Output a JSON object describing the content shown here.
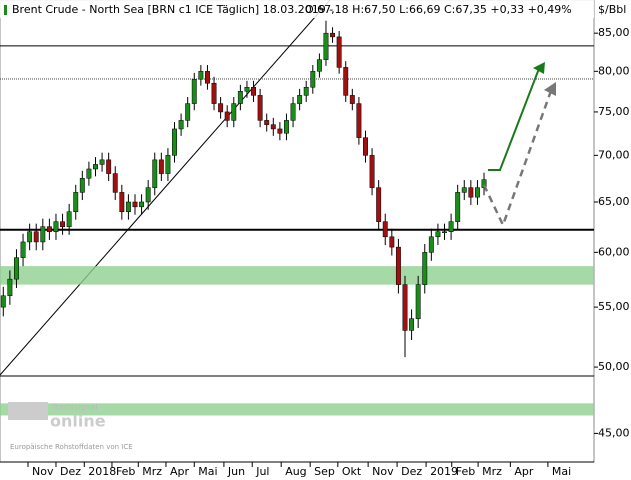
{
  "chart_data": {
    "type": "candlestick",
    "title": "Brent Crude - North Sea [BRN c1 ICE  Täglich] 18.03.2019 -",
    "header_values": [
      "O:67,18",
      "H:67,50",
      "L:66,69",
      "C:67,35",
      "+0,33",
      "+0,49%"
    ],
    "unit": "$/Bbl",
    "watermark": "Tradesignal",
    "watermark2": "online",
    "source": "Europäische Rohstoffdaten von ICE",
    "up_color": "#1a8c1a",
    "down_color": "#a01010",
    "log_scale": true,
    "open": [
      55,
      56,
      57.5,
      59.5,
      61,
      62,
      61,
      62.5,
      62,
      63,
      62.5,
      64,
      66,
      67.5,
      68.5,
      69,
      69.5,
      68,
      66,
      64,
      65,
      64.5,
      65,
      66.5,
      69.5,
      68,
      70,
      73,
      74,
      76,
      79,
      80,
      78.5,
      76,
      75,
      74,
      76,
      77.5,
      78,
      77,
      74,
      73.5,
      73,
      72.5,
      74,
      76,
      77,
      78,
      80,
      81.5,
      85,
      84.5,
      80.5,
      77,
      76,
      72,
      70,
      66.5,
      63,
      61.5,
      60.5,
      57,
      53,
      54,
      57,
      60,
      61.5,
      62,
      62,
      63,
      66,
      66.5,
      65.5,
      66.5
    ],
    "high": [
      56.8,
      58.3,
      60.3,
      61.8,
      62.8,
      62.8,
      63.3,
      63.3,
      63.8,
      63.8,
      64.8,
      66.8,
      68.3,
      69.3,
      69.8,
      70.3,
      70.3,
      68.8,
      66.8,
      65.8,
      65.8,
      65.8,
      67.3,
      70.3,
      70.3,
      70.8,
      73.8,
      74.8,
      76.8,
      79.8,
      80.8,
      80.8,
      79.3,
      76.8,
      75.8,
      76.8,
      78.3,
      78.8,
      78.8,
      77.8,
      74.8,
      74.3,
      73.8,
      74.8,
      76.8,
      77.8,
      78.8,
      80.8,
      82.3,
      86.7,
      85.8,
      85.3,
      81.3,
      77.8,
      76.8,
      72.8,
      70.8,
      67.3,
      63.8,
      62.3,
      61.3,
      57.8,
      54.8,
      57.8,
      60.8,
      62.3,
      62.8,
      62.8,
      63.8,
      66.8,
      67.3,
      67.3,
      67.3,
      68.1
    ],
    "low": [
      54.2,
      55.2,
      56.7,
      58.7,
      60.2,
      60.2,
      60.2,
      61.2,
      61.2,
      61.7,
      61.7,
      63.2,
      65.2,
      66.7,
      67.7,
      68.2,
      67.2,
      65.2,
      63.2,
      63.2,
      63.7,
      63.7,
      64.2,
      65.7,
      67.2,
      67.2,
      69.2,
      72.2,
      73.2,
      75.2,
      78.2,
      77.7,
      75.2,
      74.2,
      73.2,
      73.2,
      75.2,
      76.7,
      76.2,
      73.2,
      72.7,
      72.2,
      71.7,
      71.7,
      73.2,
      75.2,
      76.2,
      77.2,
      79.2,
      80.7,
      83.7,
      79.7,
      76.2,
      75.2,
      71.2,
      69.2,
      65.7,
      62.2,
      60.7,
      59.7,
      56.2,
      50.8,
      52.2,
      53.2,
      56.2,
      59.2,
      60.7,
      61.2,
      61.2,
      62.2,
      65.2,
      64.7,
      64.7,
      65.7
    ],
    "close": [
      56,
      57.5,
      59.5,
      61,
      62,
      61,
      62.5,
      62,
      63,
      62.5,
      64,
      66,
      67.5,
      68.5,
      69,
      69.5,
      68,
      66,
      64,
      65,
      64.5,
      65,
      66.5,
      69.5,
      68,
      70,
      73,
      74,
      76,
      79,
      80,
      78.5,
      76,
      75,
      74,
      76,
      77.5,
      78,
      77,
      74,
      73.5,
      73,
      72.5,
      74,
      76,
      77,
      78,
      80,
      81.5,
      85,
      84.5,
      80.5,
      77,
      76,
      72,
      70,
      66.5,
      63,
      61.5,
      60.5,
      57,
      53,
      54,
      57,
      60,
      61.5,
      62,
      62,
      63,
      66,
      66.5,
      65.5,
      66.5,
      67.35
    ],
    "xlim": [
      -0.5,
      89.7
    ],
    "xticks": [
      {
        "value": 3.75,
        "label": "Nov"
      },
      {
        "value": 8,
        "label": "Dez"
      },
      {
        "value": 12.3,
        "label": "2018"
      },
      {
        "value": 16.5,
        "label": "Feb"
      },
      {
        "value": 20.5,
        "label": "Mrz"
      },
      {
        "value": 24.7,
        "label": "Apr"
      },
      {
        "value": 29,
        "label": "Mai"
      },
      {
        "value": 33.5,
        "label": "Jun"
      },
      {
        "value": 37.8,
        "label": "Jul"
      },
      {
        "value": 42.2,
        "label": "Aug"
      },
      {
        "value": 46.6,
        "label": "Sep"
      },
      {
        "value": 50.8,
        "label": "Okt"
      },
      {
        "value": 55.4,
        "label": "Nov"
      },
      {
        "value": 59.8,
        "label": "Dez"
      },
      {
        "value": 64.2,
        "label": "2019"
      },
      {
        "value": 68.1,
        "label": "Feb"
      },
      {
        "value": 72.1,
        "label": "Mrz"
      },
      {
        "value": 77,
        "label": "Apr"
      },
      {
        "value": 82.7,
        "label": "Mai"
      }
    ],
    "ylim": [
      43,
      89.6
    ],
    "yticks": [
      {
        "value": 45,
        "label": "45,00"
      },
      {
        "value": 50,
        "label": "50,00"
      },
      {
        "value": 55,
        "label": "55,00"
      },
      {
        "value": 60,
        "label": "60,00"
      },
      {
        "value": 65,
        "label": "65,00"
      },
      {
        "value": 70,
        "label": "70,00"
      },
      {
        "value": 75,
        "label": "75,00"
      },
      {
        "value": 80,
        "label": "80,00"
      },
      {
        "value": 85,
        "label": "85,00"
      }
    ],
    "hlines": [
      83.3,
      62.2,
      49.3
    ],
    "bands": [
      [
        57,
        58.7
      ],
      [
        46.3,
        47.2
      ]
    ]
  }
}
